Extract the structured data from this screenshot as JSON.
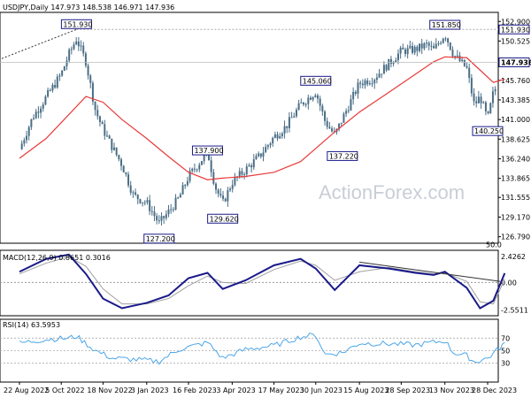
{
  "colors": {
    "background": "#ffffff",
    "frame": "#000000",
    "candle": "#4a6e86",
    "ma": "#e83a3a",
    "macd": "#1a1a8a",
    "signal": "#a0a0a0",
    "rsi": "#4da6e8",
    "callout_border": "#1a1a8a",
    "current_price_box": "#1a1a8a",
    "grid_dash": "#aaaaaa"
  },
  "chart_data": [
    {
      "type": "candlestick",
      "title": "USDJPY,Daily  147.973 148.538 146.971 147.936",
      "symbol": "USDJPY,Daily",
      "ohlc": {
        "open": 147.973,
        "high": 148.538,
        "low": 146.971,
        "close": 147.936
      },
      "ylim": [
        126.0,
        154.0
      ],
      "y_ticks": [
        "152.900",
        "150.525",
        "148.150",
        "145.760",
        "143.385",
        "141.000",
        "138.625",
        "136.240",
        "133.865",
        "131.555",
        "129.170",
        "126.790"
      ],
      "x_ticks": [
        "22 Aug 2022",
        "5 Oct 2022",
        "18 Nov 2022",
        "3 Jan 2023",
        "16 Feb 2023",
        "3 Apr 2023",
        "17 May 2023",
        "30 Jun 2023",
        "15 Aug 2023",
        "28 Sep 2023",
        "13 Nov 2023",
        "28 Dec 2023"
      ],
      "annotations": [
        {
          "label": "151.930",
          "value": 151.93,
          "date": "2022-10-21"
        },
        {
          "label": "127.200",
          "value": 127.2,
          "date": "2023-01-16"
        },
        {
          "label": "137.900",
          "value": 137.9,
          "date": "2023-03-08"
        },
        {
          "label": "129.620",
          "value": 129.62,
          "date": "2023-03-24"
        },
        {
          "label": "145.060",
          "value": 145.06,
          "date": "2023-06-30"
        },
        {
          "label": "137.220",
          "value": 137.22,
          "date": "2023-07-28"
        },
        {
          "label": "151.850",
          "value": 151.85,
          "date": "2023-11-13"
        },
        {
          "label": "140.250",
          "value": 140.25,
          "date": "2023-12-28"
        }
      ],
      "fib_label": "50.0",
      "fib_level": 139.56,
      "right_price_labels": [
        {
          "label": "151.930",
          "value": 151.93
        },
        {
          "label": "147.936",
          "value": 147.936
        }
      ],
      "series": [
        {
          "kind": "close",
          "x": [
            "2022-08-22",
            "2022-09-05",
            "2022-09-19",
            "2022-10-05",
            "2022-10-13",
            "2022-10-21",
            "2022-10-31",
            "2022-11-10",
            "2022-11-18",
            "2022-11-28",
            "2022-12-08",
            "2022-12-20",
            "2023-01-03",
            "2023-01-16",
            "2023-01-26",
            "2023-02-06",
            "2023-02-16",
            "2023-03-01",
            "2023-03-08",
            "2023-03-16",
            "2023-03-24",
            "2023-04-03",
            "2023-04-17",
            "2023-05-02",
            "2023-05-17",
            "2023-05-30",
            "2023-06-14",
            "2023-06-30",
            "2023-07-10",
            "2023-07-20",
            "2023-07-28",
            "2023-08-15",
            "2023-08-30",
            "2023-09-15",
            "2023-09-28",
            "2023-10-13",
            "2023-10-25",
            "2023-11-01",
            "2023-11-13",
            "2023-11-22",
            "2023-12-06",
            "2023-12-14",
            "2023-12-20",
            "2023-12-28",
            "2024-01-03",
            "2024-01-10",
            "2024-01-15"
          ],
          "y": [
            137.4,
            141.3,
            143.7,
            146.5,
            148.9,
            150.8,
            148.0,
            142.1,
            139.8,
            137.6,
            135.5,
            131.8,
            130.9,
            128.4,
            129.8,
            131.5,
            134.1,
            136.0,
            137.1,
            132.9,
            130.8,
            133.4,
            134.9,
            136.6,
            138.9,
            140.2,
            142.8,
            144.4,
            140.7,
            139.1,
            141.1,
            145.4,
            146.0,
            147.8,
            149.3,
            149.5,
            150.1,
            149.4,
            151.4,
            148.9,
            147.2,
            142.7,
            143.8,
            141.0,
            144.3,
            145.7,
            147.94
          ]
        },
        {
          "kind": "moving_average",
          "x": [
            "2022-08-22",
            "2022-09-19",
            "2022-10-13",
            "2022-10-31",
            "2022-11-18",
            "2022-12-08",
            "2023-01-03",
            "2023-01-26",
            "2023-02-16",
            "2023-03-08",
            "2023-03-24",
            "2023-04-17",
            "2023-05-17",
            "2023-06-14",
            "2023-06-30",
            "2023-07-20",
            "2023-08-15",
            "2023-09-15",
            "2023-10-13",
            "2023-11-01",
            "2023-11-13",
            "2023-12-06",
            "2023-12-20",
            "2024-01-03",
            "2024-01-15"
          ],
          "y": [
            136.3,
            138.7,
            141.6,
            143.8,
            143.1,
            141.0,
            138.7,
            136.5,
            134.6,
            133.7,
            133.9,
            134.1,
            134.6,
            135.9,
            137.5,
            139.5,
            141.9,
            144.3,
            146.5,
            148.0,
            148.6,
            148.5,
            147.0,
            145.5,
            145.9
          ]
        }
      ]
    },
    {
      "type": "line",
      "title": "MACD(12,26,9) 0.8651 0.3016",
      "ylim": [
        -3.1,
        3.0
      ],
      "y_ticks": [
        "2.4262",
        "0.00",
        "-2.5511"
      ],
      "series": [
        {
          "kind": "macd",
          "x": [
            "2022-08-22",
            "2022-09-19",
            "2022-10-13",
            "2022-10-31",
            "2022-11-18",
            "2022-12-08",
            "2023-01-03",
            "2023-01-26",
            "2023-02-16",
            "2023-03-08",
            "2023-03-24",
            "2023-04-17",
            "2023-05-17",
            "2023-06-14",
            "2023-06-30",
            "2023-07-20",
            "2023-08-15",
            "2023-09-15",
            "2023-10-13",
            "2023-11-01",
            "2023-11-13",
            "2023-12-06",
            "2023-12-20",
            "2024-01-03",
            "2024-01-15"
          ],
          "y": [
            1.0,
            2.2,
            2.6,
            0.8,
            -1.5,
            -2.4,
            -1.9,
            -1.2,
            0.4,
            0.9,
            -0.6,
            0.2,
            1.6,
            2.2,
            1.3,
            -0.7,
            1.6,
            1.3,
            0.9,
            0.7,
            1.0,
            -0.5,
            -2.4,
            -1.7,
            0.87
          ]
        },
        {
          "kind": "signal",
          "x": [
            "2022-08-22",
            "2022-09-19",
            "2022-10-13",
            "2022-10-31",
            "2022-11-18",
            "2022-12-08",
            "2023-01-03",
            "2023-01-26",
            "2023-02-16",
            "2023-03-08",
            "2023-03-24",
            "2023-04-17",
            "2023-05-17",
            "2023-06-14",
            "2023-06-30",
            "2023-07-20",
            "2023-08-15",
            "2023-09-15",
            "2023-10-13",
            "2023-11-01",
            "2023-11-13",
            "2023-12-06",
            "2023-12-20",
            "2024-01-03",
            "2024-01-15"
          ],
          "y": [
            0.8,
            1.8,
            2.4,
            1.5,
            -0.6,
            -2.0,
            -2.0,
            -1.5,
            -0.3,
            0.6,
            0.0,
            -0.1,
            1.2,
            2.0,
            1.6,
            0.2,
            1.0,
            1.4,
            1.0,
            0.8,
            0.9,
            0.1,
            -1.8,
            -2.0,
            0.3
          ]
        },
        {
          "kind": "trendline",
          "x": [
            "2023-08-15",
            "2024-01-10"
          ],
          "y": [
            1.9,
            0.1
          ]
        }
      ]
    },
    {
      "type": "line",
      "title": "RSI(14) 63.5953",
      "ylim": [
        0,
        100
      ],
      "y_ticks": [
        "70",
        "50",
        "30"
      ],
      "series": [
        {
          "kind": "rsi",
          "x": [
            "2022-08-22",
            "2022-09-19",
            "2022-10-13",
            "2022-10-21",
            "2022-11-10",
            "2022-11-28",
            "2022-12-20",
            "2023-01-16",
            "2023-02-06",
            "2023-03-08",
            "2023-03-24",
            "2023-04-17",
            "2023-05-17",
            "2023-06-14",
            "2023-06-30",
            "2023-07-10",
            "2023-07-28",
            "2023-08-15",
            "2023-09-15",
            "2023-10-13",
            "2023-11-13",
            "2023-11-22",
            "2023-12-06",
            "2023-12-14",
            "2023-12-28",
            "2024-01-10",
            "2024-01-15"
          ],
          "y": [
            62,
            68,
            70,
            73,
            50,
            38,
            36,
            33,
            52,
            63,
            38,
            52,
            58,
            72,
            75,
            44,
            47,
            62,
            61,
            59,
            66,
            47,
            42,
            32,
            38,
            55,
            63.6
          ]
        }
      ]
    }
  ],
  "watermark": "ActionForex.com"
}
